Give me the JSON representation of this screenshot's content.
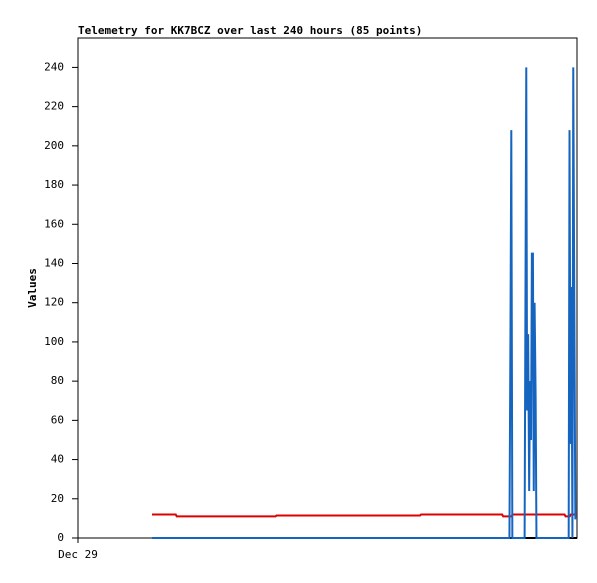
{
  "chart_data": {
    "type": "line",
    "title": "Telemetry for KK7BCZ over last 240 hours (85 points)",
    "y_label": "Values",
    "xlim": [
      0,
      240
    ],
    "xticks": [
      {
        "value": 0,
        "label": "Dec 29"
      }
    ],
    "ylim": [
      0,
      255
    ],
    "yticks": [
      0,
      20,
      40,
      60,
      80,
      100,
      120,
      140,
      160,
      180,
      200,
      220,
      240
    ],
    "series": [
      {
        "color": "#000000",
        "x": [
          35.6,
          240
        ],
        "values": [
          0,
          0
        ]
      },
      {
        "color": "#dd0000",
        "x": [
          35.6,
          47,
          47.5,
          95,
          95.5,
          164.5,
          165,
          204,
          204.5,
          208.5,
          209,
          234,
          234.5,
          236.5,
          237,
          240
        ],
        "values": [
          12,
          12,
          11,
          11,
          11.5,
          11.5,
          12,
          12,
          11,
          11,
          12,
          12,
          11,
          11,
          12,
          12
        ]
      },
      {
        "color": "#1565c0",
        "x": [
          35.6,
          207.5,
          208.0,
          208.4,
          208.9,
          214.8,
          215.2,
          215.6,
          216.0,
          216.5,
          217.0,
          217.4,
          217.9,
          218.3,
          218.8,
          219.2,
          219.6,
          220.1,
          220.5,
          236.0,
          236.4,
          236.9,
          237.3,
          237.8,
          238.2,
          238.7,
          239.2,
          240
        ],
        "values": [
          0,
          0,
          105,
          208,
          0,
          0,
          120,
          240,
          65,
          104,
          24,
          80,
          50,
          145,
          145,
          24,
          120,
          72,
          0,
          0,
          208,
          48,
          128,
          0,
          240,
          120,
          10,
          10
        ]
      }
    ]
  }
}
